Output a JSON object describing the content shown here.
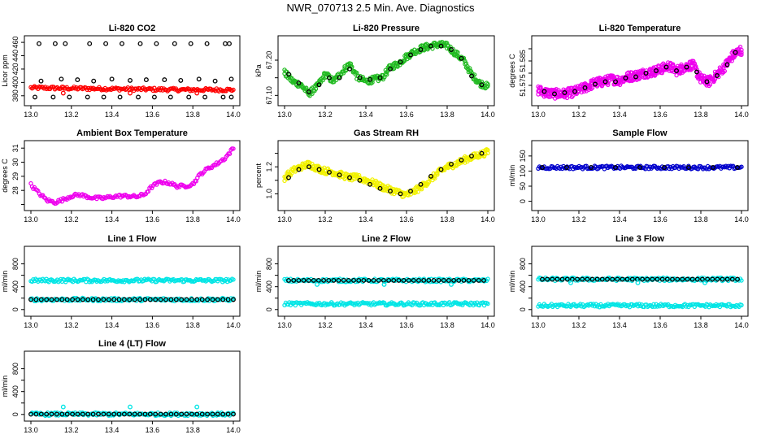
{
  "page_title": "NWR_070713  2.5 Min. Ave. Diagnostics",
  "colors": {
    "red": "#ff0000",
    "green": "#22bb22",
    "magenta": "#ee00ee",
    "yellow": "#f2f200",
    "blue": "#0000cc",
    "cyan": "#00e5e5",
    "black": "#000000"
  },
  "chart_data": [
    {
      "id": "co2",
      "type": "scatter",
      "title": "Li-820 CO2",
      "ylabel": "Licor ppm",
      "xlim": [
        13.0,
        14.0
      ],
      "ylim": [
        370,
        465
      ],
      "xticks": [
        13.0,
        13.2,
        13.4,
        13.6,
        13.8,
        14.0
      ],
      "yticks": [
        380,
        400,
        420,
        440,
        460
      ],
      "series": [
        {
          "name": "main",
          "color": "#ff0000",
          "x": [
            13.0,
            13.25,
            13.5,
            13.75,
            14.0
          ],
          "y": [
            392,
            391,
            390,
            389,
            389
          ]
        },
        {
          "name": "averages-high",
          "color": "#000000",
          "x": [
            13.04,
            13.12,
            13.17,
            13.29,
            13.37,
            13.45,
            13.54,
            13.62,
            13.71,
            13.79,
            13.87,
            13.96,
            13.98
          ],
          "y": [
            458,
            458,
            458,
            458,
            458,
            458,
            458,
            458,
            458,
            458,
            458,
            458,
            458
          ]
        },
        {
          "name": "averages-mid",
          "color": "#000000",
          "x": [
            13.05,
            13.15,
            13.23,
            13.31,
            13.4,
            13.49,
            13.57,
            13.66,
            13.74,
            13.83,
            13.91,
            13.99
          ],
          "y": [
            402,
            405,
            404,
            402,
            405,
            403,
            404,
            404,
            403,
            405,
            402,
            405
          ]
        },
        {
          "name": "averages-low",
          "color": "#000000",
          "x": [
            13.02,
            13.11,
            13.19,
            13.28,
            13.36,
            13.44,
            13.53,
            13.61,
            13.69,
            13.78,
            13.86,
            13.95,
            13.99
          ],
          "y": [
            378,
            378,
            378,
            378,
            378,
            378,
            378,
            378,
            378,
            378,
            378,
            378,
            378
          ]
        },
        {
          "name": "flagged",
          "color": "#ff0000",
          "x": [
            13.16,
            13.49,
            13.82
          ],
          "y": [
            384,
            384,
            384
          ]
        }
      ]
    },
    {
      "id": "pressure",
      "type": "scatter",
      "title": "Li-820 Pressure",
      "ylabel": "kPa",
      "xlim": [
        13.0,
        14.0
      ],
      "ylim": [
        67.08,
        67.26
      ],
      "xticks": [
        13.0,
        13.2,
        13.4,
        13.6,
        13.8,
        14.0
      ],
      "yticks": [
        67.1,
        67.15,
        67.2
      ],
      "ytick_labels": [
        "67.10",
        "",
        "67.20"
      ],
      "series": [
        {
          "name": "main",
          "color": "#22bb22",
          "x": [
            13.0,
            13.04,
            13.08,
            13.12,
            13.16,
            13.2,
            13.24,
            13.28,
            13.32,
            13.36,
            13.4,
            13.44,
            13.48,
            13.52,
            13.56,
            13.6,
            13.64,
            13.68,
            13.72,
            13.76,
            13.8,
            13.84,
            13.88,
            13.92,
            13.96,
            14.0
          ],
          "y": [
            67.165,
            67.14,
            67.13,
            67.105,
            67.125,
            67.16,
            67.14,
            67.165,
            67.19,
            67.15,
            67.14,
            67.145,
            67.15,
            67.18,
            67.19,
            67.21,
            67.225,
            67.235,
            67.24,
            67.245,
            67.24,
            67.22,
            67.2,
            67.16,
            67.135,
            67.125
          ]
        },
        {
          "name": "averages",
          "color": "#000000",
          "x": [
            13.02,
            13.07,
            13.12,
            13.17,
            13.22,
            13.27,
            13.32,
            13.37,
            13.42,
            13.47,
            13.52,
            13.57,
            13.62,
            13.67,
            13.72,
            13.77,
            13.82,
            13.87,
            13.92,
            13.97
          ],
          "y": [
            67.16,
            67.135,
            67.11,
            67.13,
            67.15,
            67.15,
            67.175,
            67.15,
            67.145,
            67.15,
            67.175,
            67.195,
            67.215,
            67.23,
            67.24,
            67.24,
            67.23,
            67.205,
            67.155,
            67.13
          ]
        }
      ]
    },
    {
      "id": "temperature",
      "type": "scatter",
      "title": "Li-820 Temperature",
      "ylabel": "degrees C",
      "xlim": [
        13.0,
        14.0
      ],
      "ylim": [
        51.568,
        51.594
      ],
      "xticks": [
        13.0,
        13.2,
        13.4,
        13.6,
        13.8,
        14.0
      ],
      "yticks": [
        51.575,
        51.58,
        51.585,
        51.59
      ],
      "ytick_labels": [
        "51.575",
        "",
        "51.585",
        ""
      ],
      "series": [
        {
          "name": "main",
          "color": "#ee00ee",
          "x": [
            13.0,
            13.04,
            13.08,
            13.12,
            13.16,
            13.2,
            13.24,
            13.28,
            13.32,
            13.36,
            13.4,
            13.44,
            13.48,
            13.52,
            13.56,
            13.6,
            13.64,
            13.68,
            13.72,
            13.76,
            13.8,
            13.84,
            13.88,
            13.92,
            13.96,
            14.0
          ],
          "y": [
            51.573,
            51.572,
            51.5715,
            51.5715,
            51.572,
            51.573,
            51.5745,
            51.576,
            51.5765,
            51.5775,
            51.577,
            51.5785,
            51.579,
            51.58,
            51.5805,
            51.5815,
            51.583,
            51.581,
            51.5825,
            51.5835,
            51.5775,
            51.5765,
            51.5795,
            51.583,
            51.5875,
            51.5895
          ]
        },
        {
          "name": "averages",
          "color": "#000000",
          "x": [
            13.03,
            13.08,
            13.13,
            13.18,
            13.23,
            13.28,
            13.33,
            13.38,
            13.43,
            13.48,
            13.53,
            13.58,
            13.63,
            13.68,
            13.73,
            13.78,
            13.83,
            13.88,
            13.93,
            13.97
          ],
          "y": [
            51.5725,
            51.5715,
            51.572,
            51.5725,
            51.574,
            51.5755,
            51.5765,
            51.5765,
            51.578,
            51.5785,
            51.58,
            51.581,
            51.5825,
            51.581,
            51.5825,
            51.5805,
            51.5765,
            51.579,
            51.5835,
            51.5885
          ]
        }
      ]
    },
    {
      "id": "ambient",
      "type": "scatter",
      "title": "Ambient Box Temperature",
      "ylabel": "degrees C",
      "xlim": [
        13.0,
        14.0
      ],
      "ylim": [
        26.8,
        31.3
      ],
      "xticks": [
        13.0,
        13.2,
        13.4,
        13.6,
        13.8,
        14.0
      ],
      "yticks": [
        27,
        28,
        29,
        30,
        31
      ],
      "ytick_labels": [
        "",
        "28",
        "29",
        "30",
        "31"
      ],
      "series": [
        {
          "name": "main",
          "color": "#ee00ee",
          "x": [
            13.0,
            13.04,
            13.08,
            13.12,
            13.16,
            13.2,
            13.24,
            13.28,
            13.32,
            13.36,
            13.4,
            13.44,
            13.48,
            13.52,
            13.56,
            13.6,
            13.64,
            13.68,
            13.72,
            13.76,
            13.8,
            13.84,
            13.88,
            13.92,
            13.96,
            14.0
          ],
          "y": [
            28.4,
            27.8,
            27.3,
            27.15,
            27.35,
            27.6,
            27.7,
            27.55,
            27.45,
            27.45,
            27.55,
            27.6,
            27.6,
            27.55,
            27.7,
            28.3,
            28.6,
            28.55,
            28.3,
            28.3,
            28.45,
            29.2,
            29.6,
            29.9,
            30.3,
            31.0
          ]
        }
      ]
    },
    {
      "id": "rh",
      "type": "scatter",
      "title": "Gas Stream RH",
      "ylabel": "percent",
      "xlim": [
        13.0,
        14.0
      ],
      "ylim": [
        0.9,
        1.37
      ],
      "xticks": [
        13.0,
        13.2,
        13.4,
        13.6,
        13.8,
        14.0
      ],
      "yticks": [
        1.0,
        1.1,
        1.2,
        1.3
      ],
      "ytick_labels": [
        "1.0",
        "",
        "1.2",
        ""
      ],
      "series": [
        {
          "name": "main",
          "color": "#f2f200",
          "x": [
            13.0,
            13.04,
            13.08,
            13.12,
            13.16,
            13.2,
            13.24,
            13.28,
            13.32,
            13.36,
            13.4,
            13.44,
            13.48,
            13.52,
            13.56,
            13.6,
            13.64,
            13.68,
            13.72,
            13.76,
            13.8,
            13.84,
            13.88,
            13.92,
            13.96,
            14.0
          ],
          "y": [
            1.12,
            1.17,
            1.2,
            1.22,
            1.19,
            1.17,
            1.16,
            1.14,
            1.12,
            1.12,
            1.1,
            1.08,
            1.05,
            1.03,
            1.01,
            0.99,
            1.02,
            1.06,
            1.11,
            1.16,
            1.2,
            1.22,
            1.25,
            1.27,
            1.29,
            1.31
          ]
        },
        {
          "name": "averages",
          "color": "#000000",
          "x": [
            13.02,
            13.07,
            13.12,
            13.17,
            13.22,
            13.27,
            13.32,
            13.37,
            13.42,
            13.47,
            13.52,
            13.57,
            13.62,
            13.67,
            13.72,
            13.77,
            13.82,
            13.87,
            13.92,
            13.97
          ],
          "y": [
            1.12,
            1.18,
            1.2,
            1.18,
            1.16,
            1.14,
            1.12,
            1.1,
            1.07,
            1.04,
            1.02,
            1.0,
            1.02,
            1.07,
            1.13,
            1.18,
            1.22,
            1.25,
            1.28,
            1.3
          ]
        }
      ]
    },
    {
      "id": "sample",
      "type": "scatter",
      "title": "Sample Flow",
      "ylabel": "ml/min",
      "xlim": [
        13.0,
        14.0
      ],
      "ylim": [
        -20,
        190
      ],
      "xticks": [
        13.0,
        13.2,
        13.4,
        13.6,
        13.8,
        14.0
      ],
      "yticks": [
        0,
        50,
        100,
        150
      ],
      "series": [
        {
          "name": "main",
          "color": "#0000cc",
          "x": [
            13.0,
            13.5,
            14.0
          ],
          "y": [
            112,
            112,
            112
          ]
        },
        {
          "name": "averages",
          "color": "#000000",
          "x": [
            13.02,
            13.14,
            13.26,
            13.38,
            13.5,
            13.62,
            13.74,
            13.86,
            13.98
          ],
          "y": [
            112,
            112,
            112,
            112,
            112,
            112,
            112,
            112,
            112
          ]
        }
      ]
    },
    {
      "id": "line1",
      "type": "scatter",
      "title": "Line 1 Flow",
      "ylabel": "ml/min",
      "xlim": [
        13.0,
        14.0
      ],
      "ylim": [
        -60,
        1050
      ],
      "xticks": [
        13.0,
        13.2,
        13.4,
        13.6,
        13.8,
        14.0
      ],
      "yticks": [
        0,
        200,
        400,
        600,
        800
      ],
      "ytick_labels": [
        "0",
        "",
        "400",
        "",
        "800"
      ],
      "series": [
        {
          "name": "main",
          "color": "#00e5e5",
          "x": [
            13.0,
            13.5,
            14.0
          ],
          "y": [
            510,
            510,
            510
          ]
        },
        {
          "name": "secondary",
          "color": "#00e5e5",
          "x": [
            13.0,
            13.5,
            14.0
          ],
          "y": [
            175,
            175,
            175
          ]
        },
        {
          "name": "averages",
          "color": "#000000",
          "x": [
            13.0,
            13.5,
            14.0
          ],
          "y": [
            175,
            175,
            175
          ]
        }
      ]
    },
    {
      "id": "line2",
      "type": "scatter",
      "title": "Line 2 Flow",
      "ylabel": "ml/min",
      "xlim": [
        13.0,
        14.0
      ],
      "ylim": [
        -60,
        1050
      ],
      "xticks": [
        13.0,
        13.2,
        13.4,
        13.6,
        13.8,
        14.0
      ],
      "yticks": [
        0,
        200,
        400,
        600,
        800
      ],
      "ytick_labels": [
        "0",
        "",
        "400",
        "",
        "800"
      ],
      "series": [
        {
          "name": "main",
          "color": "#00e5e5",
          "x": [
            13.0,
            13.5,
            14.0
          ],
          "y": [
            100,
            100,
            100
          ]
        },
        {
          "name": "secondary",
          "color": "#00e5e5",
          "x": [
            13.0,
            13.5,
            14.0
          ],
          "y": [
            510,
            510,
            510
          ]
        },
        {
          "name": "averages",
          "color": "#000000",
          "x": [
            13.02,
            13.5,
            13.98
          ],
          "y": [
            510,
            510,
            510
          ]
        },
        {
          "name": "flagged",
          "color": "#00e5e5",
          "x": [
            13.16,
            13.49,
            13.82
          ],
          "y": [
            440,
            440,
            440
          ]
        }
      ]
    },
    {
      "id": "line3",
      "type": "scatter",
      "title": "Line 3 Flow",
      "ylabel": "ml/min",
      "xlim": [
        13.0,
        14.0
      ],
      "ylim": [
        -60,
        1050
      ],
      "xticks": [
        13.0,
        13.2,
        13.4,
        13.6,
        13.8,
        14.0
      ],
      "yticks": [
        0,
        200,
        400,
        600,
        800
      ],
      "ytick_labels": [
        "0",
        "",
        "400",
        "",
        "800"
      ],
      "series": [
        {
          "name": "main",
          "color": "#00e5e5",
          "x": [
            13.0,
            13.5,
            14.0
          ],
          "y": [
            70,
            70,
            70
          ]
        },
        {
          "name": "secondary",
          "color": "#00e5e5",
          "x": [
            13.0,
            13.5,
            14.0
          ],
          "y": [
            530,
            530,
            530
          ]
        },
        {
          "name": "averages",
          "color": "#000000",
          "x": [
            13.02,
            13.5,
            13.98
          ],
          "y": [
            530,
            530,
            530
          ]
        },
        {
          "name": "flagged",
          "color": "#00e5e5",
          "x": [
            13.16,
            13.49,
            13.82
          ],
          "y": [
            470,
            470,
            470
          ]
        }
      ]
    },
    {
      "id": "line4",
      "type": "scatter",
      "title": "Line 4 (LT) Flow",
      "ylabel": "ml/min",
      "xlim": [
        13.0,
        14.0
      ],
      "ylim": [
        -60,
        1050
      ],
      "xticks": [
        13.0,
        13.2,
        13.4,
        13.6,
        13.8,
        14.0
      ],
      "yticks": [
        0,
        200,
        400,
        600,
        800
      ],
      "ytick_labels": [
        "0",
        "",
        "400",
        "",
        "800"
      ],
      "series": [
        {
          "name": "main",
          "color": "#00e5e5",
          "x": [
            13.0,
            13.5,
            14.0
          ],
          "y": [
            5,
            5,
            5
          ]
        },
        {
          "name": "averages",
          "color": "#000000",
          "x": [
            13.0,
            13.5,
            14.0
          ],
          "y": [
            5,
            5,
            5
          ]
        },
        {
          "name": "flagged",
          "color": "#00e5e5",
          "x": [
            13.16,
            13.49,
            13.82
          ],
          "y": [
            130,
            130,
            130
          ]
        }
      ]
    }
  ]
}
